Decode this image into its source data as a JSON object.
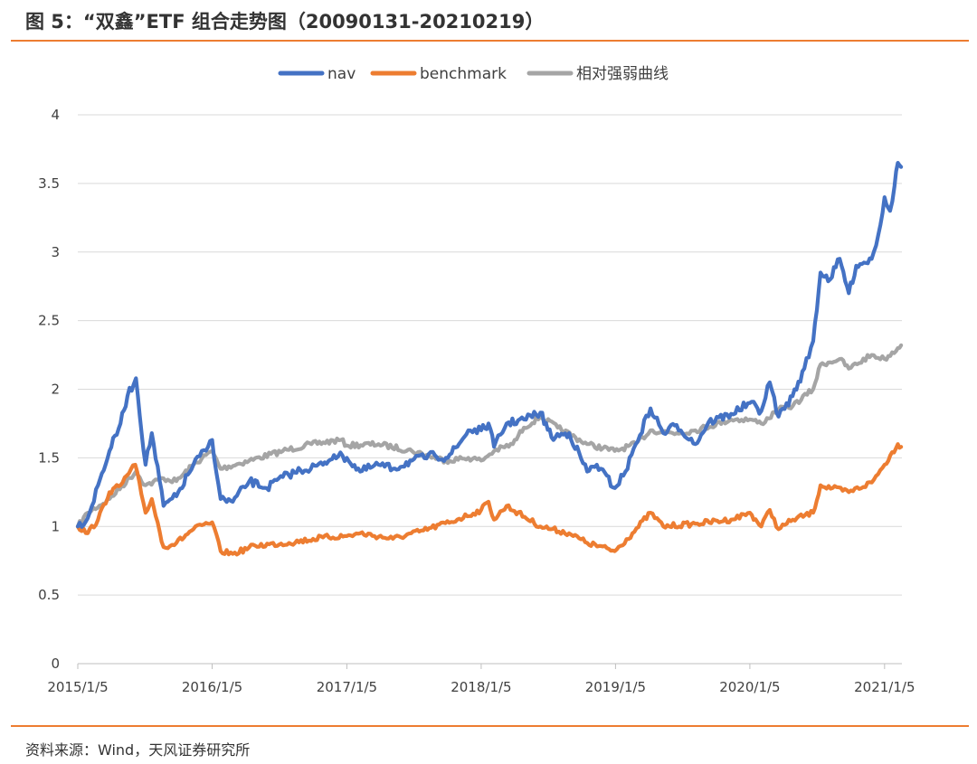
{
  "title": "图 5：“双鑫”ETF 组合走势图（20090131-20210219）",
  "source": "资料来源：Wind，天风证券研究所",
  "colors": {
    "accent": "#ED7D31",
    "nav": "#4472C4",
    "benchmark": "#ED7D31",
    "relative": "#A5A5A5",
    "grid": "#D9D9D9"
  },
  "chart_data": {
    "type": "line",
    "x_ticks": [
      "2015/1/5",
      "2016/1/5",
      "2017/1/5",
      "2018/1/5",
      "2019/1/5",
      "2020/1/5",
      "2021/1/5"
    ],
    "y_ticks": [
      "0",
      "0.5",
      "1",
      "1.5",
      "2",
      "2.5",
      "3",
      "3.5",
      "4"
    ],
    "ylim": [
      0,
      4
    ],
    "xlim": [
      "2015/1/5",
      "2021/2/19"
    ],
    "grid": true,
    "legend_position": "top-center",
    "series": [
      {
        "name": "nav",
        "color": "#4472C4",
        "points": [
          [
            "2015/1/5",
            1.0
          ],
          [
            "2015/2/1",
            1.06
          ],
          [
            "2015/3/1",
            1.3
          ],
          [
            "2015/4/1",
            1.55
          ],
          [
            "2015/5/1",
            1.75
          ],
          [
            "2015/5/20",
            1.95
          ],
          [
            "2015/6/12",
            2.08
          ],
          [
            "2015/7/8",
            1.45
          ],
          [
            "2015/7/25",
            1.68
          ],
          [
            "2015/8/26",
            1.15
          ],
          [
            "2015/9/30",
            1.22
          ],
          [
            "2015/11/15",
            1.45
          ],
          [
            "2015/12/25",
            1.58
          ],
          [
            "2016/1/5",
            1.63
          ],
          [
            "2016/1/28",
            1.2
          ],
          [
            "2016/3/1",
            1.18
          ],
          [
            "2016/4/15",
            1.33
          ],
          [
            "2016/6/1",
            1.28
          ],
          [
            "2016/7/15",
            1.36
          ],
          [
            "2016/9/1",
            1.41
          ],
          [
            "2016/11/1",
            1.45
          ],
          [
            "2016/12/1",
            1.52
          ],
          [
            "2017/1/5",
            1.5
          ],
          [
            "2017/2/10",
            1.4
          ],
          [
            "2017/4/1",
            1.45
          ],
          [
            "2017/5/10",
            1.42
          ],
          [
            "2017/7/1",
            1.48
          ],
          [
            "2017/9/1",
            1.52
          ],
          [
            "2017/10/1",
            1.5
          ],
          [
            "2017/11/1",
            1.58
          ],
          [
            "2017/12/1",
            1.7
          ],
          [
            "2018/1/5",
            1.7
          ],
          [
            "2018/1/25",
            1.75
          ],
          [
            "2018/2/9",
            1.58
          ],
          [
            "2018/3/15",
            1.75
          ],
          [
            "2018/5/1",
            1.78
          ],
          [
            "2018/6/15",
            1.83
          ],
          [
            "2018/7/15",
            1.65
          ],
          [
            "2018/9/1",
            1.68
          ],
          [
            "2018/10/20",
            1.4
          ],
          [
            "2018/11/15",
            1.45
          ],
          [
            "2019/1/3",
            1.28
          ],
          [
            "2019/2/1",
            1.4
          ],
          [
            "2019/3/1",
            1.6
          ],
          [
            "2019/4/10",
            1.86
          ],
          [
            "2019/5/15",
            1.68
          ],
          [
            "2019/6/20",
            1.74
          ],
          [
            "2019/8/10",
            1.6
          ],
          [
            "2019/9/15",
            1.76
          ],
          [
            "2019/11/15",
            1.82
          ],
          [
            "2020/1/5",
            1.9
          ],
          [
            "2020/2/5",
            1.84
          ],
          [
            "2020/2/28",
            2.05
          ],
          [
            "2020/3/23",
            1.8
          ],
          [
            "2020/4/30",
            1.95
          ],
          [
            "2020/6/1",
            2.15
          ],
          [
            "2020/6/25",
            2.35
          ],
          [
            "2020/7/15",
            2.85
          ],
          [
            "2020/8/10",
            2.8
          ],
          [
            "2020/9/5",
            2.95
          ],
          [
            "2020/9/30",
            2.7
          ],
          [
            "2020/10/20",
            2.9
          ],
          [
            "2020/12/1",
            2.95
          ],
          [
            "2020/12/25",
            3.2
          ],
          [
            "2021/1/5",
            3.4
          ],
          [
            "2021/1/20",
            3.3
          ],
          [
            "2021/2/1",
            3.48
          ],
          [
            "2021/2/10",
            3.65
          ],
          [
            "2021/2/19",
            3.62
          ]
        ]
      },
      {
        "name": "benchmark",
        "color": "#ED7D31",
        "points": [
          [
            "2015/1/5",
            1.0
          ],
          [
            "2015/2/1",
            0.95
          ],
          [
            "2015/3/1",
            1.05
          ],
          [
            "2015/4/1",
            1.25
          ],
          [
            "2015/5/1",
            1.3
          ],
          [
            "2015/6/10",
            1.45
          ],
          [
            "2015/7/8",
            1.1
          ],
          [
            "2015/7/25",
            1.2
          ],
          [
            "2015/8/26",
            0.85
          ],
          [
            "2015/9/30",
            0.88
          ],
          [
            "2015/11/15",
            0.98
          ],
          [
            "2015/12/25",
            1.02
          ],
          [
            "2016/1/5",
            1.03
          ],
          [
            "2016/1/28",
            0.82
          ],
          [
            "2016/3/1",
            0.8
          ],
          [
            "2016/5/1",
            0.86
          ],
          [
            "2016/8/1",
            0.88
          ],
          [
            "2016/11/1",
            0.92
          ],
          [
            "2017/1/5",
            0.93
          ],
          [
            "2017/2/10",
            0.95
          ],
          [
            "2017/5/10",
            0.91
          ],
          [
            "2017/8/1",
            0.97
          ],
          [
            "2017/11/1",
            1.05
          ],
          [
            "2018/1/5",
            1.12
          ],
          [
            "2018/1/25",
            1.18
          ],
          [
            "2018/2/9",
            1.05
          ],
          [
            "2018/3/15",
            1.15
          ],
          [
            "2018/6/15",
            1.0
          ],
          [
            "2018/9/1",
            0.95
          ],
          [
            "2018/10/20",
            0.88
          ],
          [
            "2019/1/3",
            0.82
          ],
          [
            "2019/2/20",
            0.95
          ],
          [
            "2019/4/10",
            1.1
          ],
          [
            "2019/5/15",
            1.0
          ],
          [
            "2019/8/10",
            1.02
          ],
          [
            "2019/11/15",
            1.05
          ],
          [
            "2020/1/5",
            1.1
          ],
          [
            "2020/2/5",
            1.0
          ],
          [
            "2020/2/28",
            1.12
          ],
          [
            "2020/3/23",
            0.98
          ],
          [
            "2020/5/1",
            1.05
          ],
          [
            "2020/6/25",
            1.1
          ],
          [
            "2020/7/15",
            1.3
          ],
          [
            "2020/9/30",
            1.25
          ],
          [
            "2020/12/1",
            1.32
          ],
          [
            "2021/1/5",
            1.45
          ],
          [
            "2021/2/10",
            1.6
          ],
          [
            "2021/2/19",
            1.58
          ]
        ]
      },
      {
        "name": "相对强弱曲线",
        "color": "#A5A5A5",
        "points": [
          [
            "2015/1/5",
            1.0
          ],
          [
            "2015/2/1",
            1.1
          ],
          [
            "2015/4/1",
            1.2
          ],
          [
            "2015/6/12",
            1.4
          ],
          [
            "2015/7/8",
            1.3
          ],
          [
            "2015/8/26",
            1.35
          ],
          [
            "2015/9/30",
            1.33
          ],
          [
            "2015/11/15",
            1.45
          ],
          [
            "2016/1/5",
            1.55
          ],
          [
            "2016/1/28",
            1.42
          ],
          [
            "2016/4/15",
            1.48
          ],
          [
            "2016/7/15",
            1.55
          ],
          [
            "2016/10/1",
            1.6
          ],
          [
            "2016/12/20",
            1.63
          ],
          [
            "2017/1/5",
            1.59
          ],
          [
            "2017/4/1",
            1.6
          ],
          [
            "2017/7/1",
            1.55
          ],
          [
            "2017/10/1",
            1.48
          ],
          [
            "2017/12/1",
            1.5
          ],
          [
            "2018/1/5",
            1.48
          ],
          [
            "2018/2/9",
            1.55
          ],
          [
            "2018/4/1",
            1.6
          ],
          [
            "2018/5/1",
            1.72
          ],
          [
            "2018/6/15",
            1.8
          ],
          [
            "2018/8/1",
            1.72
          ],
          [
            "2018/10/20",
            1.6
          ],
          [
            "2019/1/3",
            1.55
          ],
          [
            "2019/3/1",
            1.6
          ],
          [
            "2019/4/10",
            1.7
          ],
          [
            "2019/6/20",
            1.68
          ],
          [
            "2019/8/10",
            1.7
          ],
          [
            "2019/11/15",
            1.78
          ],
          [
            "2020/1/5",
            1.78
          ],
          [
            "2020/2/5",
            1.75
          ],
          [
            "2020/3/23",
            1.85
          ],
          [
            "2020/5/1",
            1.88
          ],
          [
            "2020/6/25",
            2.0
          ],
          [
            "2020/7/15",
            2.18
          ],
          [
            "2020/9/5",
            2.22
          ],
          [
            "2020/9/30",
            2.15
          ],
          [
            "2020/12/1",
            2.25
          ],
          [
            "2021/1/5",
            2.22
          ],
          [
            "2021/2/10",
            2.3
          ],
          [
            "2021/2/19",
            2.32
          ]
        ]
      }
    ]
  }
}
